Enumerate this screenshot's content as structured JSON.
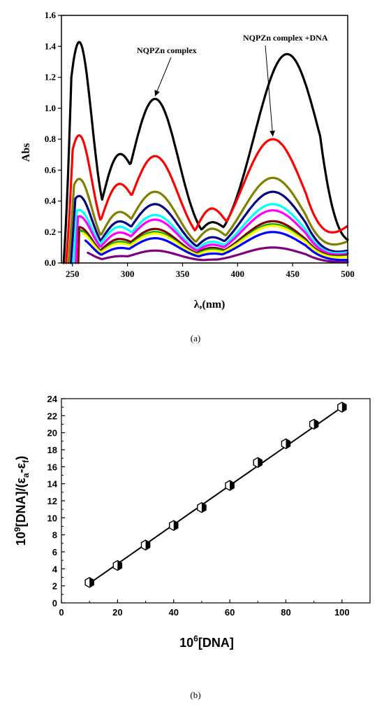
{
  "chart_data": [
    {
      "type": "line",
      "panel_label": "(a)",
      "xlabel": "λ,(nm)",
      "ylabel": "Abs",
      "xlim": [
        240,
        500
      ],
      "ylim": [
        0.0,
        1.6
      ],
      "x_ticks": [
        "250",
        "300",
        "350",
        "400",
        "450",
        "500"
      ],
      "y_ticks": [
        "0.0",
        "0.2",
        "0.4",
        "0.6",
        "0.8",
        "1.0",
        "1.2",
        "1.4",
        "1.6"
      ],
      "annotations": [
        {
          "text": "NQPZn complex",
          "points_to": [
            325,
            1.06
          ]
        },
        {
          "text": "NQPZn complex +DNA",
          "points_to": [
            432,
            0.8
          ]
        }
      ],
      "series": [
        {
          "color": "#000000",
          "peaks": [
            1.42,
            1.06,
            1.35
          ],
          "valley1": 0.67,
          "valley2": 0.27,
          "peak3_x": 445,
          "end": 0.15
        },
        {
          "color": "#ff0000",
          "peaks": [
            0.82,
            0.69,
            0.8
          ],
          "valley1": 0.5,
          "valley2": 0.37,
          "peak3_x": 432,
          "end": 0.24
        },
        {
          "color": "#808000",
          "peaks": [
            0.54,
            0.46,
            0.55
          ],
          "valley1": 0.32,
          "valley2": 0.23,
          "peak3_x": 432,
          "end": 0.14
        },
        {
          "color": "#000080",
          "peaks": [
            0.43,
            0.38,
            0.46
          ],
          "valley1": 0.26,
          "valley2": 0.17,
          "peak3_x": 432,
          "end": 0.08
        },
        {
          "color": "#00ffff",
          "peaks": [
            0.34,
            0.31,
            0.38
          ],
          "valley1": 0.23,
          "valley2": 0.14,
          "peak3_x": 432,
          "end": 0.07
        },
        {
          "color": "#ff00ff",
          "peaks": [
            0.3,
            0.28,
            0.34
          ],
          "valley1": 0.19,
          "valley2": 0.12,
          "peak3_x": 432,
          "end": 0.06
        },
        {
          "color": "#800000",
          "peaks": [
            0.23,
            0.22,
            0.27
          ],
          "valley1": 0.15,
          "valley2": 0.1,
          "peak3_x": 432,
          "end": 0.05
        },
        {
          "color": "#00aa00",
          "peaks": [
            0.21,
            0.2,
            0.25
          ],
          "valley1": 0.13,
          "valley2": 0.09,
          "peak3_x": 432,
          "end": 0.045
        },
        {
          "color": "#ffff00",
          "peaks": [
            0.2,
            0.19,
            0.24
          ],
          "valley1": 0.12,
          "valley2": 0.08,
          "peak3_x": 432,
          "end": 0.04
        },
        {
          "color": "#0000ff",
          "peaks": [
            0.16,
            0.16,
            0.2
          ],
          "valley1": 0.09,
          "valley2": 0.06,
          "peak3_x": 432,
          "end": 0.02
        },
        {
          "color": "#800080",
          "peaks": [
            0.08,
            0.08,
            0.1
          ],
          "valley1": 0.04,
          "valley2": 0.02,
          "peak3_x": 432,
          "end": 0.005
        }
      ]
    },
    {
      "type": "scatter",
      "panel_label": "(b)",
      "xlabel_base": "10",
      "xlabel_sup": "6",
      "xlabel_rest": "[DNA]",
      "ylabel_base": "10",
      "ylabel_sup": "9",
      "ylabel_mid": "[DNA]/(ε",
      "ylabel_sub1": "a",
      "ylabel_dash": "-ε",
      "ylabel_sub2": "f",
      "ylabel_end": ")",
      "xlim": [
        0,
        110
      ],
      "ylim": [
        0,
        24
      ],
      "x_ticks": [
        "0",
        "20",
        "40",
        "60",
        "80",
        "100"
      ],
      "y_ticks": [
        "0",
        "2",
        "4",
        "6",
        "8",
        "10",
        "12",
        "14",
        "16",
        "18",
        "20",
        "22",
        "24"
      ],
      "x": [
        10,
        20,
        30,
        40,
        50,
        60,
        70,
        80,
        90,
        100
      ],
      "y": [
        2.4,
        4.4,
        6.8,
        9.1,
        11.2,
        13.8,
        16.5,
        18.7,
        21.0,
        23.0
      ],
      "fit_line": {
        "x": [
          10,
          100
        ],
        "y": [
          2.3,
          23.0
        ]
      }
    }
  ]
}
